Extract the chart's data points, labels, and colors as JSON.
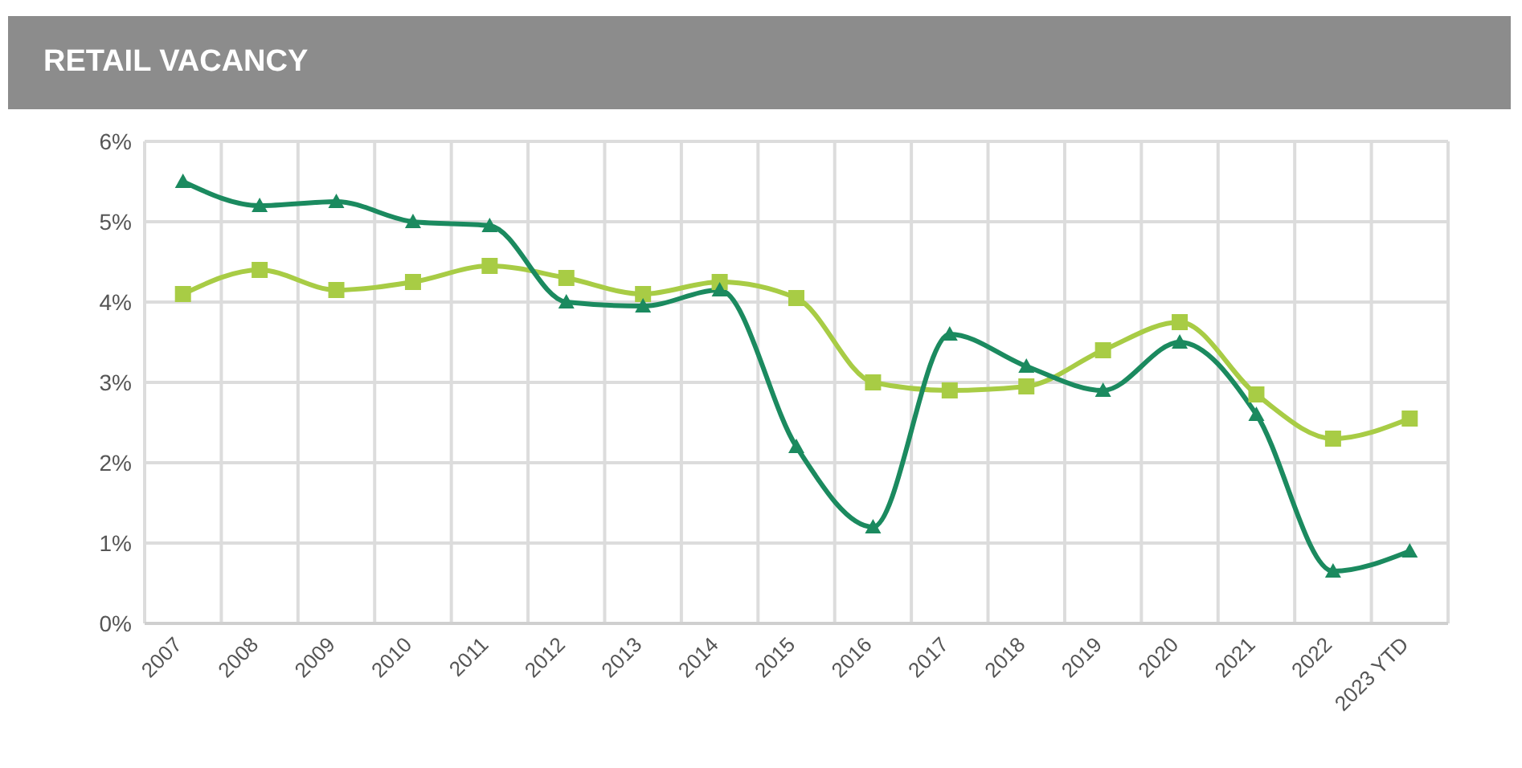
{
  "chart_data": {
    "type": "line",
    "title": "RETAIL VACANCY",
    "categories": [
      "2007",
      "2008",
      "2009",
      "2010",
      "2011",
      "2012",
      "2013",
      "2014",
      "2015",
      "2016",
      "2017",
      "2018",
      "2019",
      "2020",
      "2021",
      "2022",
      "2023 YTD"
    ],
    "series": [
      {
        "color": "#1b8a5f",
        "marker": "triangle",
        "values": [
          5.5,
          5.2,
          5.25,
          5.0,
          4.95,
          4.0,
          3.95,
          4.15,
          2.2,
          1.2,
          3.6,
          3.2,
          2.9,
          3.5,
          2.6,
          0.65,
          0.9
        ]
      },
      {
        "color": "#a8cc45",
        "marker": "square",
        "values": [
          4.1,
          4.4,
          4.15,
          4.25,
          4.45,
          4.3,
          4.1,
          4.25,
          4.05,
          3.0,
          2.9,
          2.95,
          3.4,
          3.75,
          2.85,
          2.3,
          2.55
        ]
      }
    ],
    "ylim": [
      0,
      6
    ],
    "yticks": [
      {
        "value": 0,
        "label": "0%"
      },
      {
        "value": 1,
        "label": "1%"
      },
      {
        "value": 2,
        "label": "2%"
      },
      {
        "value": 3,
        "label": "3%"
      },
      {
        "value": 4,
        "label": "4%"
      },
      {
        "value": 5,
        "label": "5%"
      },
      {
        "value": 6,
        "label": "6%"
      }
    ],
    "grid": true,
    "legend": false,
    "line_style": "solid"
  }
}
